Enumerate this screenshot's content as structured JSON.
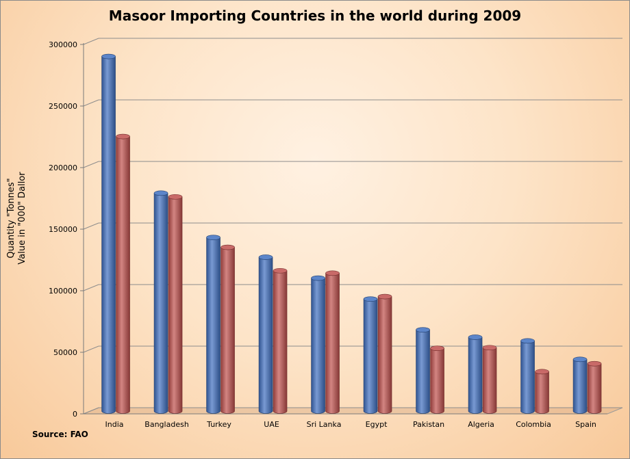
{
  "chart_data": {
    "type": "bar",
    "title": "Masoor Importing Countries in the world during 2009",
    "ylabel_lines": [
      "Quantity \"Tonnes\"",
      "Value in \"000\" Dallor"
    ],
    "categories": [
      "India",
      "Bangladesh",
      "Turkey",
      "UAE",
      "Sri Lanka",
      "Egypt",
      "Pakistan",
      "Algeria",
      "Colombia",
      "Spain"
    ],
    "series": [
      {
        "values": [
          288000,
          177000,
          141000,
          125000,
          108000,
          91000,
          66000,
          60000,
          57000,
          42000
        ],
        "color": "#3f6fc0"
      },
      {
        "values": [
          223000,
          174000,
          133000,
          114000,
          112000,
          93000,
          51000,
          51500,
          32000,
          38500
        ],
        "color": "#c0504d"
      }
    ],
    "ylim": [
      0,
      300000
    ],
    "yticks": [
      0,
      50000,
      100000,
      150000,
      200000,
      250000,
      300000
    ],
    "grid": true,
    "legend": "none"
  },
  "source_note": "Source: FAO"
}
